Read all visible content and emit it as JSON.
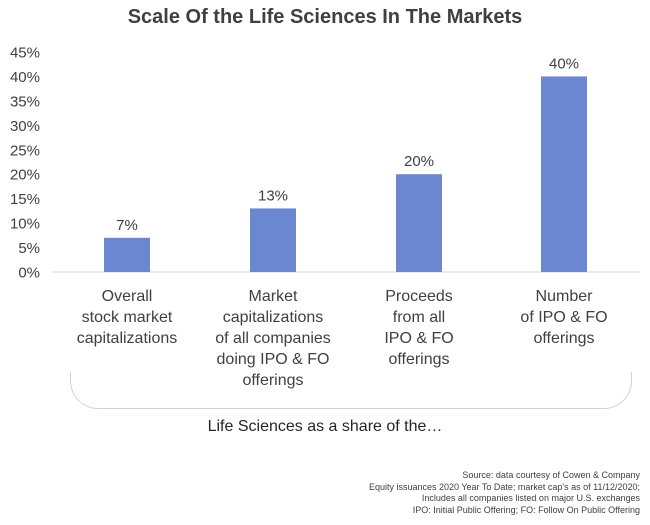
{
  "chart_data": {
    "type": "bar",
    "title": "Scale Of the Life Sciences In The Markets",
    "categories": [
      [
        "Overall",
        "stock market",
        "capitalizations"
      ],
      [
        "Market",
        "capitalizations",
        "of all companies",
        "doing IPO & FO",
        "offerings"
      ],
      [
        "Proceeds",
        "from all",
        "IPO & FO",
        "offerings"
      ],
      [
        "Number",
        "of IPO & FO",
        "offerings"
      ]
    ],
    "values": [
      7,
      13,
      20,
      40
    ],
    "value_labels": [
      "7%",
      "13%",
      "20%",
      "40%"
    ],
    "ylim": [
      0,
      45
    ],
    "yticks": [
      0,
      5,
      10,
      15,
      20,
      25,
      30,
      35,
      40,
      45
    ],
    "ytick_labels": [
      "0%",
      "5%",
      "10%",
      "15%",
      "20%",
      "25%",
      "30%",
      "35%",
      "40%",
      "45%"
    ],
    "xlabel": "Life Sciences as a share of the…",
    "bar_color": "#6b87cf",
    "grid": false
  },
  "source_lines": [
    "Source: data courtesy of Cowen & Company",
    "Equity issuances 2020 Year To Date; market cap's as of 11/12/2020;",
    "Includes all companies listed on major U.S. exchanges",
    "IPO: Initial Public Offering; FO: Follow On Public Offering"
  ]
}
